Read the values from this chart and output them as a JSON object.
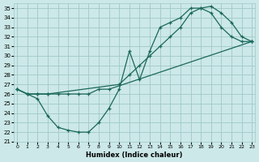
{
  "xlabel": "Humidex (Indice chaleur)",
  "bg_color": "#cce8e8",
  "grid_color": "#a0c8c8",
  "line_color": "#1a6858",
  "xlim": [
    -0.3,
    23.3
  ],
  "ylim": [
    21,
    35.5
  ],
  "yticks": [
    21,
    22,
    23,
    24,
    25,
    26,
    27,
    28,
    29,
    30,
    31,
    32,
    33,
    34,
    35
  ],
  "xticks": [
    0,
    1,
    2,
    3,
    4,
    5,
    6,
    7,
    8,
    9,
    10,
    11,
    12,
    13,
    14,
    15,
    16,
    17,
    18,
    19,
    20,
    21,
    22,
    23
  ],
  "line1_x": [
    0,
    1,
    2,
    3,
    4,
    5,
    6,
    7,
    8,
    9,
    10,
    11,
    12,
    13,
    14,
    15,
    16,
    17,
    18,
    19,
    20,
    21,
    22,
    23
  ],
  "line1_y": [
    26.5,
    26.0,
    25.5,
    23.7,
    22.5,
    22.2,
    22.0,
    22.0,
    23.0,
    24.5,
    26.5,
    30.5,
    27.5,
    30.5,
    33.0,
    33.5,
    34.0,
    35.0,
    35.0,
    34.5,
    33.0,
    32.0,
    31.5,
    31.5
  ],
  "line2_x": [
    0,
    1,
    2,
    3,
    10,
    11,
    12,
    13,
    14,
    15,
    16,
    17,
    18,
    19,
    20,
    21,
    22,
    23
  ],
  "line2_y": [
    26.5,
    26.0,
    26.0,
    26.0,
    27.0,
    28.0,
    29.0,
    30.0,
    31.0,
    32.0,
    33.0,
    34.5,
    35.0,
    35.2,
    34.5,
    33.5,
    32.0,
    31.5
  ],
  "line3_x": [
    0,
    1,
    2,
    3,
    4,
    5,
    6,
    7,
    8,
    9,
    23
  ],
  "line3_y": [
    26.5,
    26.0,
    26.0,
    26.0,
    26.0,
    26.0,
    26.0,
    26.0,
    26.5,
    26.5,
    31.5
  ]
}
